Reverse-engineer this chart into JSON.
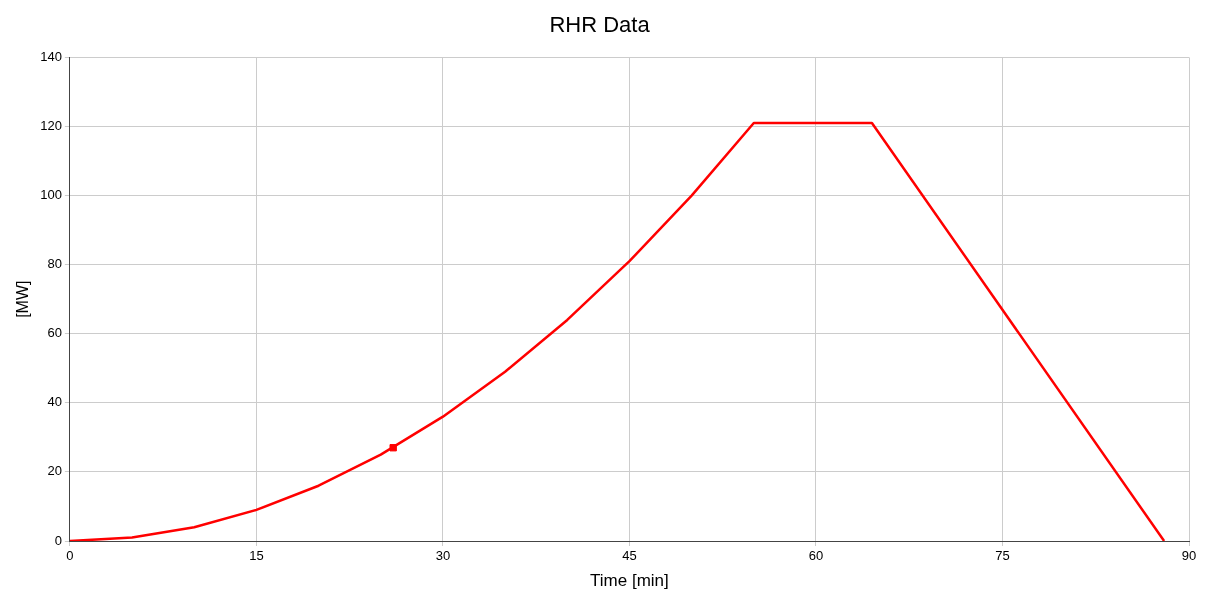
{
  "chart_data": {
    "type": "line",
    "title": "RHR Data",
    "xlabel": "Time [min]",
    "ylabel": "[MW]",
    "xlim": [
      0,
      90
    ],
    "xticks": [
      0,
      15,
      30,
      45,
      60,
      75,
      90
    ],
    "ylim": [
      0,
      140
    ],
    "yticks": [
      0,
      20,
      40,
      60,
      80,
      100,
      120,
      140
    ],
    "grid": true,
    "legend": false,
    "series": [
      {
        "type": "line",
        "color": "#ff0000",
        "marker": "none",
        "x": [
          0,
          5,
          10,
          15,
          20,
          25,
          30,
          35,
          40,
          45,
          50,
          55,
          64.5,
          88
        ],
        "values": [
          0,
          1,
          4,
          9,
          16,
          25,
          36,
          49,
          64,
          81,
          100,
          121,
          121,
          0
        ]
      },
      {
        "type": "scatter",
        "color": "#ff0000",
        "marker": "square",
        "x": [
          26
        ],
        "values": [
          27
        ]
      }
    ]
  }
}
